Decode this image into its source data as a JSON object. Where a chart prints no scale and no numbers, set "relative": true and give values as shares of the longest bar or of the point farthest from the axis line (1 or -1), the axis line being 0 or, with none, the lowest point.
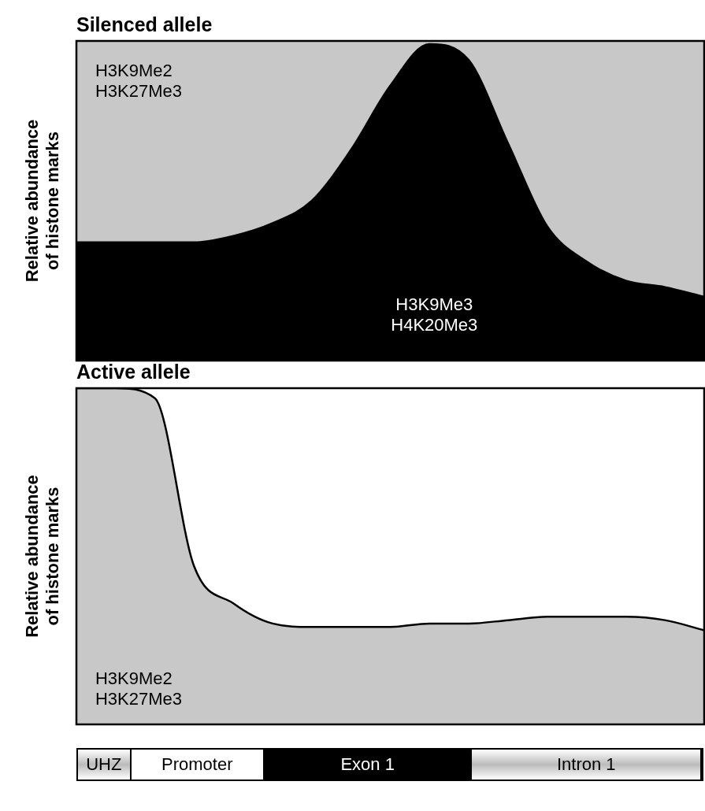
{
  "chart_data": [
    {
      "type": "area",
      "title": "Silenced allele",
      "ylabel": "Relative abundance\nof histone marks",
      "relative": true,
      "stacked": true,
      "categories": [
        null,
        null,
        null,
        null,
        null,
        null,
        null,
        null,
        null,
        null,
        null,
        null,
        null,
        null,
        null,
        null,
        null
      ],
      "series": [
        {
          "color": "#000000",
          "values": [
            0.37,
            0.37,
            0.37,
            0.37,
            0.39,
            0.43,
            0.5,
            0.66,
            0.86,
            0.99,
            0.94,
            0.68,
            0.42,
            0.31,
            0.25,
            0.23,
            0.2
          ]
        },
        {
          "color": "#c8c8c8",
          "values": [
            0.63,
            0.63,
            0.63,
            0.63,
            0.61,
            0.57,
            0.5,
            0.34,
            0.14,
            0.01,
            0.06,
            0.32,
            0.58,
            0.69,
            0.75,
            0.77,
            0.8
          ]
        }
      ],
      "annotations": [
        "H3K9Me2\nH3K27Me3",
        "H3K9Me3\nH4K20Me3"
      ]
    },
    {
      "type": "area",
      "title": "Active allele",
      "ylabel": "Relative abundance\nof histone marks",
      "relative": true,
      "categories": [
        null,
        null,
        null,
        null,
        null,
        null,
        null,
        null,
        null,
        null,
        null,
        null,
        null,
        null,
        null,
        null,
        null
      ],
      "series": [
        {
          "color": "#c8c8c8",
          "values": [
            1,
            1,
            0.97,
            0.47,
            0.36,
            0.3,
            0.29,
            0.29,
            0.29,
            0.3,
            0.3,
            0.31,
            0.32,
            0.32,
            0.32,
            0.31,
            0.28
          ]
        }
      ],
      "annotations": [
        "H3K9Me2\nH3K27Me3"
      ]
    },
    {
      "type": "other",
      "annotations": [
        "UHZ",
        "Promoter",
        "Exon 1",
        "Intron 1"
      ]
    }
  ]
}
